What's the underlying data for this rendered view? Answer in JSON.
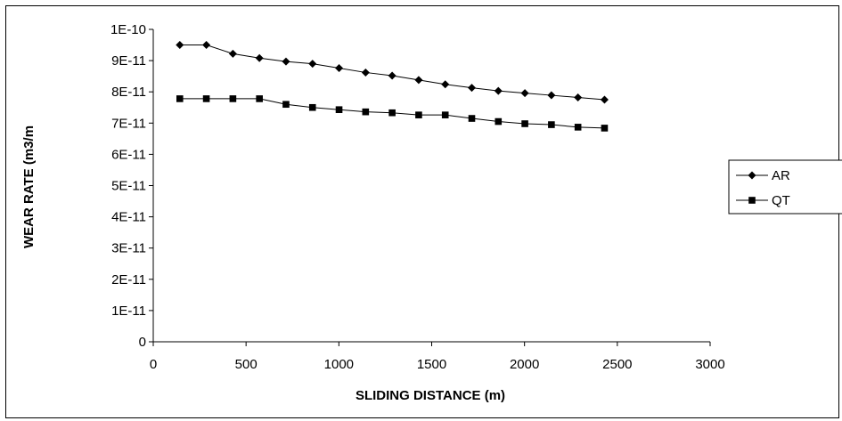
{
  "chart_data": {
    "type": "line",
    "xlabel": "SLIDING DISTANCE (m)",
    "ylabel": "WEAR RATE (m3/m",
    "xlim": [
      0,
      3000
    ],
    "ylim": [
      0,
      1e-10
    ],
    "x_ticks": [
      0,
      500,
      1000,
      1500,
      2000,
      2500,
      3000
    ],
    "x_tick_labels": [
      "0",
      "500",
      "1000",
      "1500",
      "2000",
      "2500",
      "3000"
    ],
    "y_ticks": [
      0,
      1e-11,
      2e-11,
      3e-11,
      4e-11,
      5e-11,
      6e-11,
      7e-11,
      8e-11,
      9e-11,
      1e-10
    ],
    "y_tick_labels": [
      "0",
      "1E-11",
      "2E-11",
      "3E-11",
      "4E-11",
      "5E-11",
      "6E-11",
      "7E-11",
      "8E-11",
      "9E-11",
      "1E-10"
    ],
    "grid": false,
    "legend": "right",
    "series": [
      {
        "name": "AR",
        "marker": "diamond",
        "color": "#000000",
        "x": [
          143,
          286,
          429,
          572,
          715,
          858,
          1001,
          1144,
          1287,
          1430,
          1573,
          1716,
          1859,
          2002,
          2145,
          2288,
          2431
        ],
        "y": [
          9.5e-11,
          9.5e-11,
          9.22e-11,
          9.08e-11,
          8.97e-11,
          8.9e-11,
          8.76e-11,
          8.62e-11,
          8.52e-11,
          8.38e-11,
          8.24e-11,
          8.13e-11,
          8.03e-11,
          7.96e-11,
          7.89e-11,
          7.82e-11,
          7.75e-11
        ]
      },
      {
        "name": "QT",
        "marker": "square",
        "color": "#000000",
        "x": [
          143,
          286,
          429,
          572,
          715,
          858,
          1001,
          1144,
          1287,
          1430,
          1573,
          1716,
          1859,
          2002,
          2145,
          2288,
          2431
        ],
        "y": [
          7.78e-11,
          7.78e-11,
          7.78e-11,
          7.78e-11,
          7.6e-11,
          7.5e-11,
          7.43e-11,
          7.36e-11,
          7.33e-11,
          7.26e-11,
          7.26e-11,
          7.15e-11,
          7.05e-11,
          6.98e-11,
          6.95e-11,
          6.87e-11,
          6.84e-11
        ]
      }
    ]
  }
}
